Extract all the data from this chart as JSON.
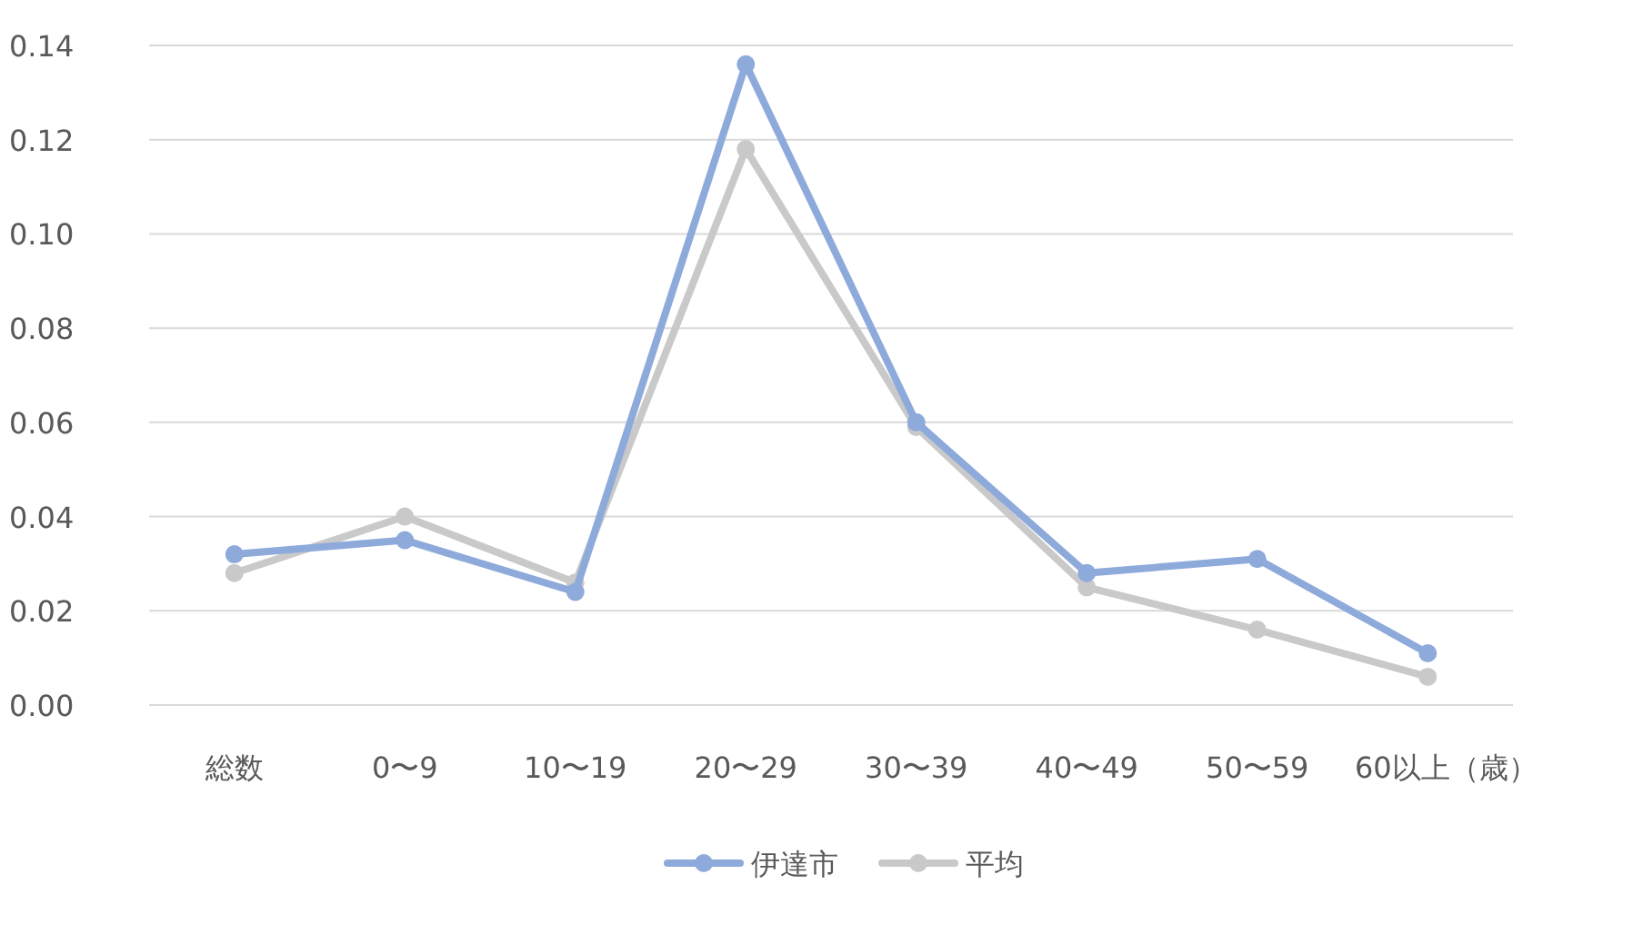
{
  "chart_data": {
    "type": "line",
    "categories": [
      "総数",
      "0〜9",
      "10〜19",
      "20〜29",
      "30〜39",
      "40〜49",
      "50〜59",
      "60以上（歳）"
    ],
    "series": [
      {
        "name": "伊達市",
        "color": "#8eaadb",
        "values": [
          0.032,
          0.035,
          0.024,
          0.136,
          0.06,
          0.028,
          0.031,
          0.011
        ]
      },
      {
        "name": "平均",
        "color": "#c9c9c9",
        "values": [
          0.028,
          0.04,
          0.026,
          0.118,
          0.059,
          0.025,
          0.016,
          0.006
        ]
      }
    ],
    "ylim": [
      0,
      0.14
    ],
    "yticks": [
      {
        "value": 0,
        "label": "0.00"
      },
      {
        "value": 0.02,
        "label": "0.02"
      },
      {
        "value": 0.04,
        "label": "0.04"
      },
      {
        "value": 0.06,
        "label": "0.06"
      },
      {
        "value": 0.08,
        "label": "0.08"
      },
      {
        "value": 0.1,
        "label": "0.10"
      },
      {
        "value": 0.12,
        "label": "0.12"
      },
      {
        "value": 0.14,
        "label": "0.14"
      }
    ],
    "grid": "y",
    "legend": "bottom",
    "marker": "circle",
    "line_style": "solid"
  }
}
